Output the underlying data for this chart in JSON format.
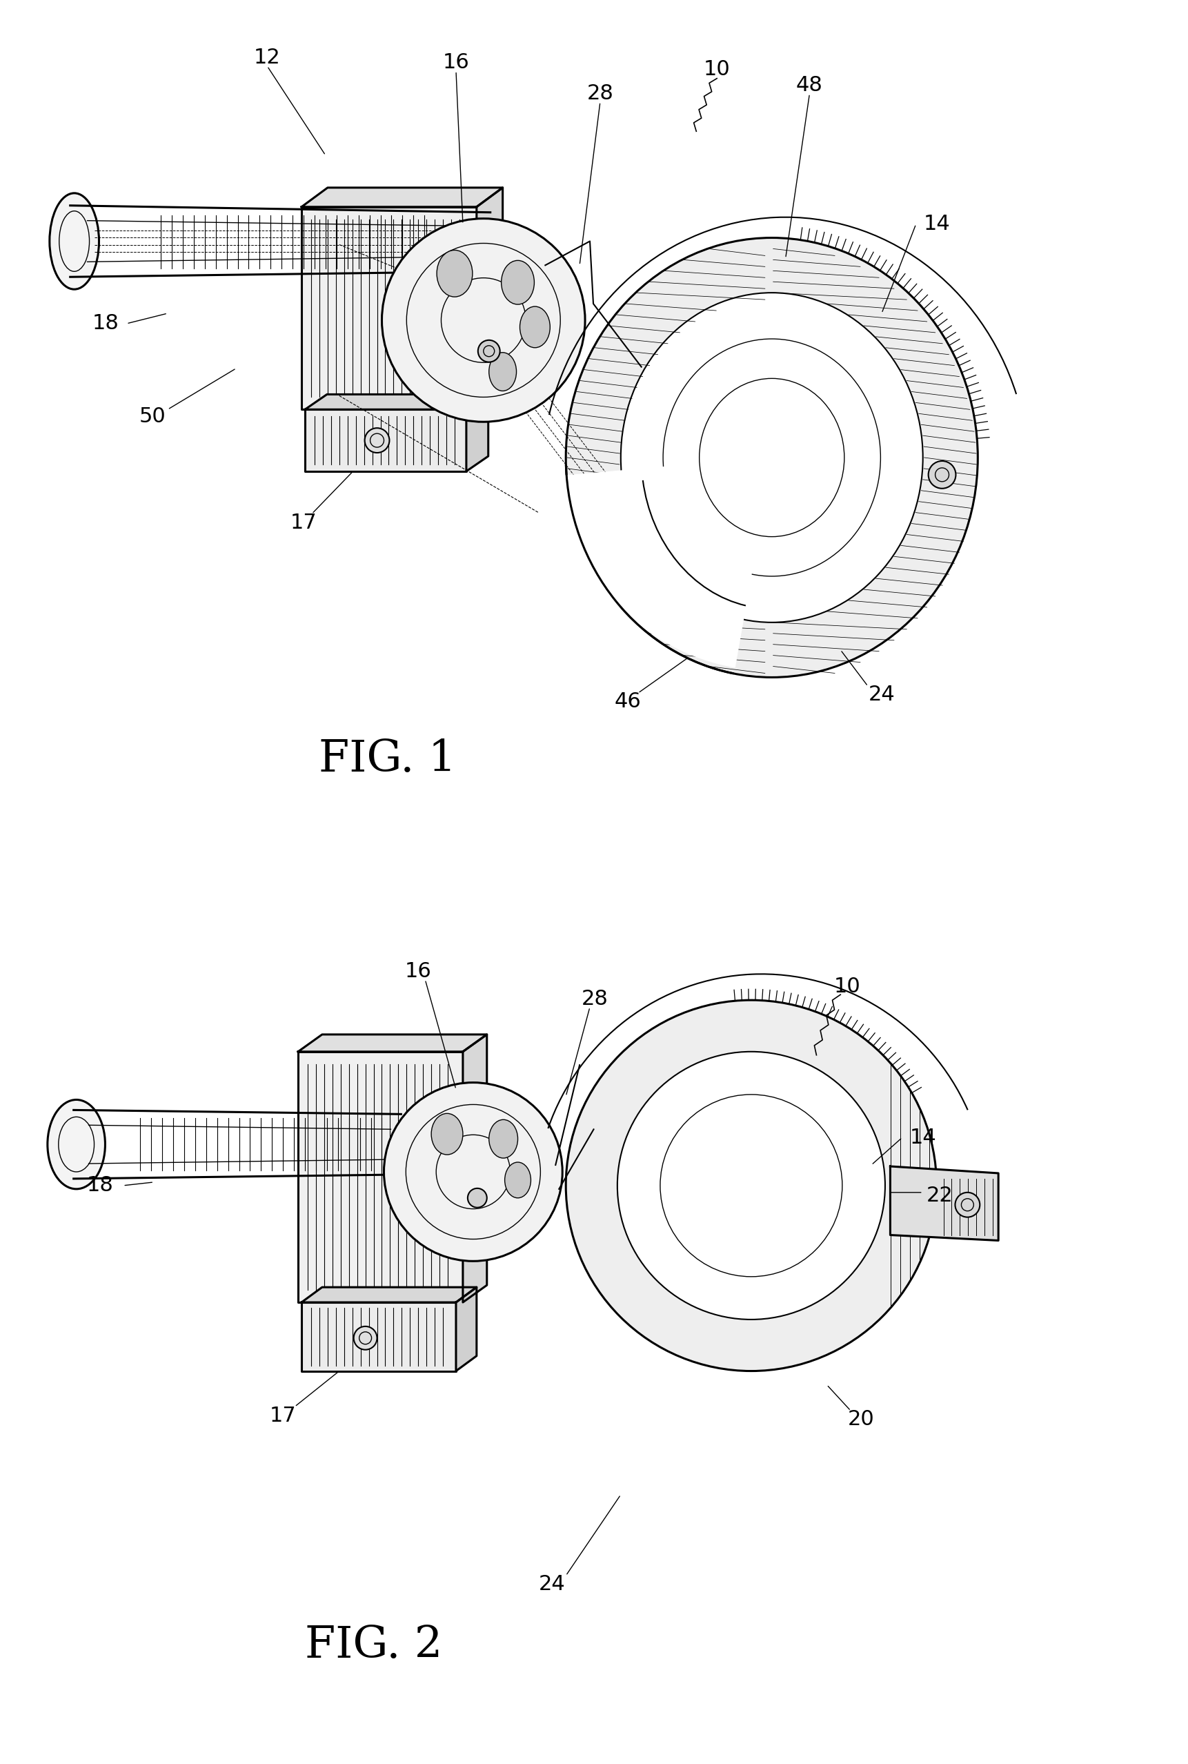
{
  "background_color": "#ffffff",
  "line_color": "#000000",
  "fig_width": 17.22,
  "fig_height": 25.56,
  "fig1_label": "FIG. 1",
  "fig2_label": "FIG. 2",
  "lw_main": 2.2,
  "lw_med": 1.5,
  "lw_thin": 1.0,
  "lw_hair": 0.6,
  "ref_fontsize": 22,
  "fig_label_fontsize": 46
}
